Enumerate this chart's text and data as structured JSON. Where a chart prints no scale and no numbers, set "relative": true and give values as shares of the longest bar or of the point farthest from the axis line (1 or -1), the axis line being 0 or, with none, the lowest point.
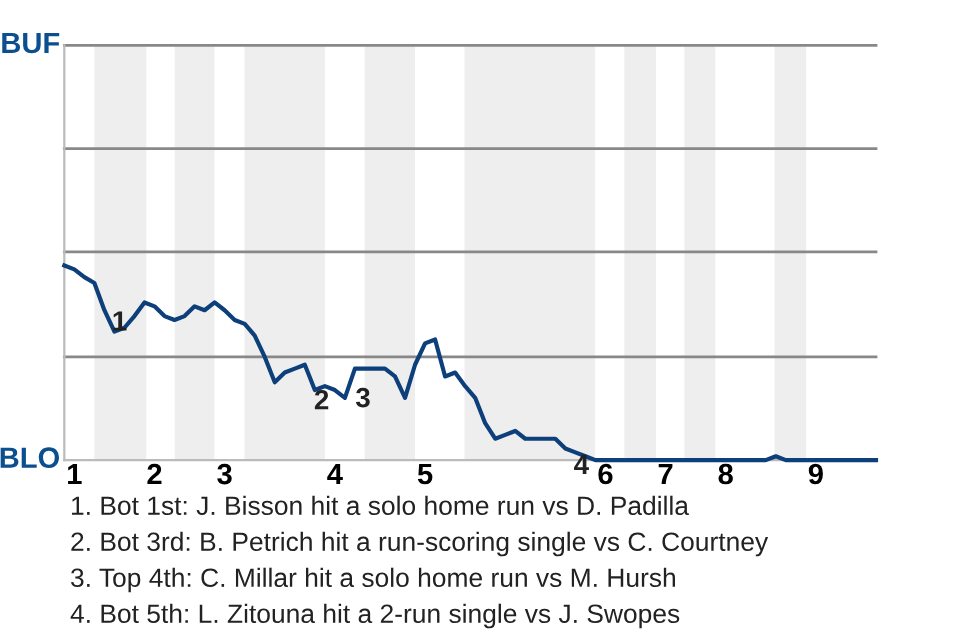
{
  "chart_data": {
    "type": "line",
    "relative": true,
    "categories": [
      null,
      "1",
      null,
      null,
      null,
      null,
      null,
      null,
      null,
      "2",
      null,
      null,
      null,
      null,
      null,
      null,
      "3",
      null,
      null,
      null,
      null,
      null,
      null,
      null,
      null,
      null,
      null,
      "4",
      null,
      null,
      null,
      null,
      null,
      null,
      null,
      null,
      "5",
      null,
      null,
      null,
      null,
      null,
      null,
      null,
      null,
      null,
      null,
      null,
      null,
      null,
      null,
      null,
      null,
      null,
      "6",
      null,
      null,
      null,
      null,
      null,
      "7",
      null,
      null,
      null,
      null,
      null,
      "8",
      null,
      null,
      null,
      null,
      null,
      null,
      null,
      null,
      "9",
      null,
      null,
      null,
      null,
      null,
      null
    ],
    "series": [
      {
        "color": "#0d3f7a",
        "values": [
          1,
          0.98,
          0.94,
          0.91,
          0.77,
          0.66,
          0.68,
          0.74,
          0.81,
          0.79,
          0.74,
          0.72,
          0.74,
          0.79,
          0.77,
          0.81,
          0.77,
          0.72,
          0.7,
          0.64,
          0.53,
          0.4,
          0.45,
          0.47,
          0.49,
          0.36,
          0.38,
          0.36,
          0.32,
          0.47,
          0.47,
          0.47,
          0.47,
          0.43,
          0.32,
          0.49,
          0.6,
          0.62,
          0.43,
          0.45,
          0.38,
          0.32,
          0.19,
          0.11,
          0.13,
          0.15,
          0.11,
          0.11,
          0.11,
          0.11,
          0.06,
          0.04,
          0.02,
          0,
          0,
          0,
          0,
          0,
          0,
          0,
          0,
          0,
          0,
          0,
          0,
          0,
          0,
          0,
          0,
          0,
          0,
          0.02,
          0,
          0,
          0,
          0,
          0,
          0,
          0,
          0,
          0,
          0
        ]
      }
    ],
    "ref_lines": [
      {
        "axis": "y",
        "value": 0.53,
        "color": "#888888"
      },
      {
        "axis": "y",
        "value": 1.07,
        "color": "#888888"
      },
      {
        "axis": "y",
        "value": 1.6,
        "color": "#888888"
      },
      {
        "axis": "y",
        "value": 2.13,
        "color": "#888888"
      }
    ],
    "marker": "none",
    "line_style": "solid",
    "annotations": [
      "BUF",
      "BLO",
      "1",
      "2",
      "3",
      "4",
      "1. Bot 1st: J. Bisson hit a solo home run vs D. Padilla",
      "2. Bot 3rd: B. Petrich hit a run-scoring single vs C. Courtney",
      "3. Top 4th: C. Millar hit a solo home run vs M. Hursh",
      "4. Bot 5th: L. Zitouna hit a 2-run single vs J. Swopes"
    ]
  }
}
